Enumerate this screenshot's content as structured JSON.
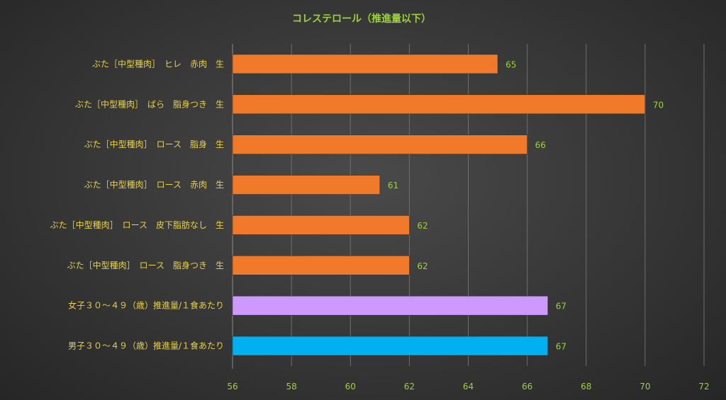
{
  "chart_data": {
    "type": "bar",
    "orientation": "horizontal",
    "title": "コレステロール（推進量以下）",
    "categories": [
      "ぶた［中型種肉］　ヒレ　赤肉　生",
      "ぶた［中型種肉］　ばら　脂身つき　生",
      "ぶた［中型種肉］　ロース　脂身　生",
      "ぶた［中型種肉］　ロース　赤肉　生",
      "ぶた［中型種肉］　ロース　皮下脂肪なし　生",
      "ぶた［中型種肉］　ロース　脂身つき　生",
      "女子３０～４９（歳）推進量/１食あたり",
      "男子３０～４９（歳）推進量/１食あたり"
    ],
    "values": [
      65,
      70,
      66,
      61,
      62,
      62,
      66.7,
      66.7
    ],
    "data_labels": [
      "65",
      "70",
      "66",
      "61",
      "62",
      "62",
      "67",
      "67"
    ],
    "bar_colors": [
      "#f07a2a",
      "#f07a2a",
      "#f07a2a",
      "#f07a2a",
      "#f07a2a",
      "#f07a2a",
      "#cc99ff",
      "#00b0f0"
    ],
    "xlim": [
      56,
      72
    ],
    "xticks": [
      "56",
      "58",
      "60",
      "62",
      "64",
      "66",
      "68",
      "70",
      "72"
    ],
    "grid": true,
    "legend": "none",
    "colors": {
      "title": "#9bd23c",
      "category_labels": "#e8d24a",
      "tick_labels": "#9bd23c",
      "data_labels": "#9bd23c"
    }
  }
}
